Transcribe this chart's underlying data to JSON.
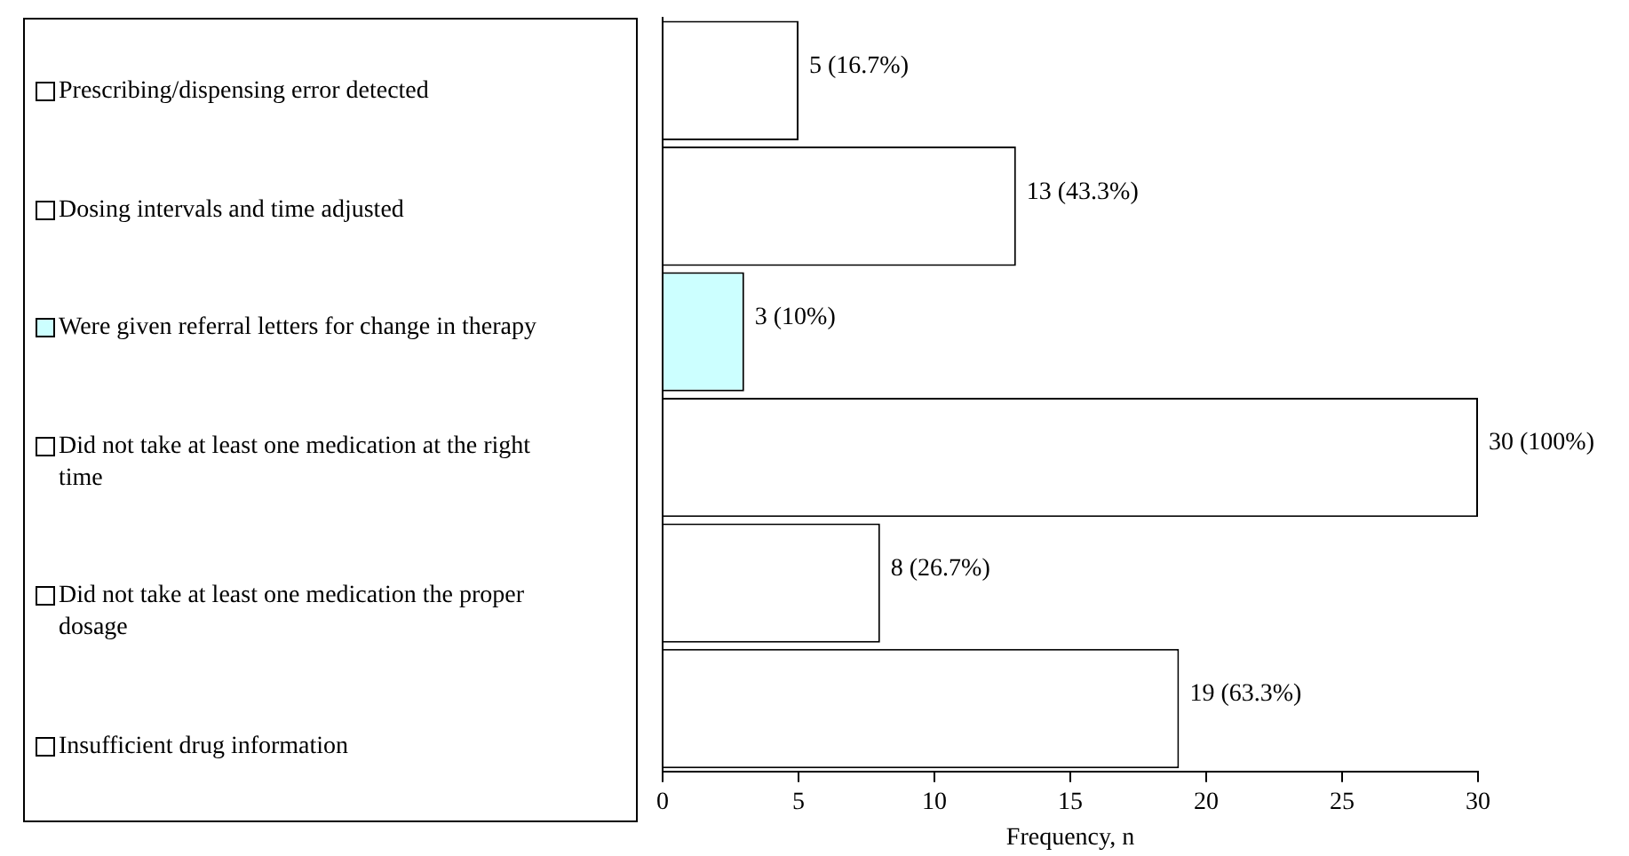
{
  "chart_data": {
    "type": "bar",
    "orientation": "horizontal",
    "xlabel": "Frequency, n",
    "categories": [
      "Prescribing/dispensing error detected",
      "Dosing intervals and time adjusted",
      "Were given referral letters for change in therapy",
      "Did not take at least one medication at the right time",
      "Did not take at least one medication the proper dosage",
      "Insufficient drug information"
    ],
    "values": [
      5,
      13,
      3,
      30,
      8,
      19
    ],
    "colors": [
      "#ffffff",
      "#ffffff",
      "#ccffff",
      "#ffffff",
      "#ffffff",
      "#ffffff"
    ],
    "value_labels": [
      "5 (16.7%)",
      "13 (43.3%)",
      "3 (10%)",
      "30 (100%)",
      "8 (26.7%)",
      "19 (63.3%)"
    ],
    "xlim": [
      0,
      30
    ],
    "xticks": [
      0,
      5,
      10,
      15,
      20,
      25,
      30
    ],
    "tick_labels": "x",
    "grid": false
  }
}
